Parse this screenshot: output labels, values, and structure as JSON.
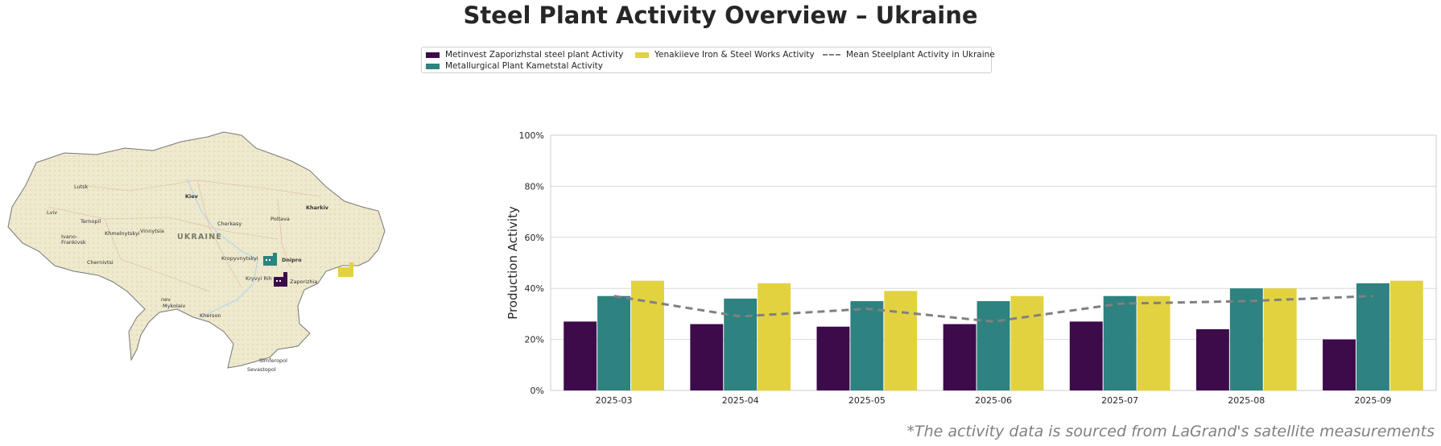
{
  "title": "Steel Plant Activity Overview – Ukraine",
  "footnote": "*The activity data is sourced from LaGrand's satellite measurements",
  "legend": {
    "items": [
      {
        "label": "Metinvest Zaporizhstal steel plant Activity",
        "color": "#3d0a4a",
        "kind": "bar"
      },
      {
        "label": "Metallurgical Plant Kametstal Activity",
        "color": "#2e8280",
        "kind": "bar"
      },
      {
        "label": "Yenakiieve Iron & Steel Works Activity",
        "color": "#e2d23f",
        "kind": "bar"
      },
      {
        "label": "Mean Steelplant Activity in Ukraine",
        "color": "#808080",
        "kind": "dashed-line"
      }
    ]
  },
  "map": {
    "country_label": "UKRAINE",
    "cities": [
      "Lutsk",
      "Kiev",
      "Kharkiv",
      "Lviv",
      "Ternopil",
      "Khmelnytskyi",
      "Vinnytsia",
      "Cherkasy",
      "Poltava",
      "Ivano-",
      "Frankivsk",
      "Chernivtsi",
      "Kropyvnytskyi",
      "Dnipro",
      "Kryvyi Rih",
      "Zaporizhia",
      "Mykolaiv",
      "Kherson",
      "nev",
      "Simferopol",
      "Sevastopol"
    ],
    "colors": {
      "land": "#efe9cf",
      "border": "#777777",
      "water": "#bcd9e8"
    },
    "plant_icons": [
      "factory-icon-kametstal",
      "factory-icon-zaporizhstal",
      "factory-icon-yenakiieve"
    ]
  },
  "chart_data": {
    "type": "bar",
    "categories": [
      "2025-03",
      "2025-04",
      "2025-05",
      "2025-06",
      "2025-07",
      "2025-08",
      "2025-09"
    ],
    "series": [
      {
        "name": "Metinvest Zaporizhstal steel plant Activity",
        "color": "#3d0a4a",
        "values": [
          27,
          26,
          25,
          26,
          27,
          24,
          20
        ]
      },
      {
        "name": "Metallurgical Plant Kametstal Activity",
        "color": "#2e8280",
        "values": [
          37,
          36,
          35,
          35,
          37,
          40,
          42
        ]
      },
      {
        "name": "Yenakiieve Iron & Steel Works Activity",
        "color": "#e2d23f",
        "values": [
          43,
          42,
          39,
          37,
          37,
          40,
          43
        ]
      }
    ],
    "line_series": {
      "name": "Mean Steelplant Activity in Ukraine",
      "color": "#808080",
      "style": "dashed",
      "values": [
        37,
        29,
        32,
        27,
        34,
        35,
        37
      ]
    },
    "ylabel": "Production Activity",
    "xlabel": "",
    "ylim": [
      0,
      100
    ],
    "yticks": [
      "0%",
      "20%",
      "40%",
      "60%",
      "80%",
      "100%"
    ],
    "ytick_values": [
      0,
      20,
      40,
      60,
      80,
      100
    ],
    "grid": "horizontal"
  }
}
